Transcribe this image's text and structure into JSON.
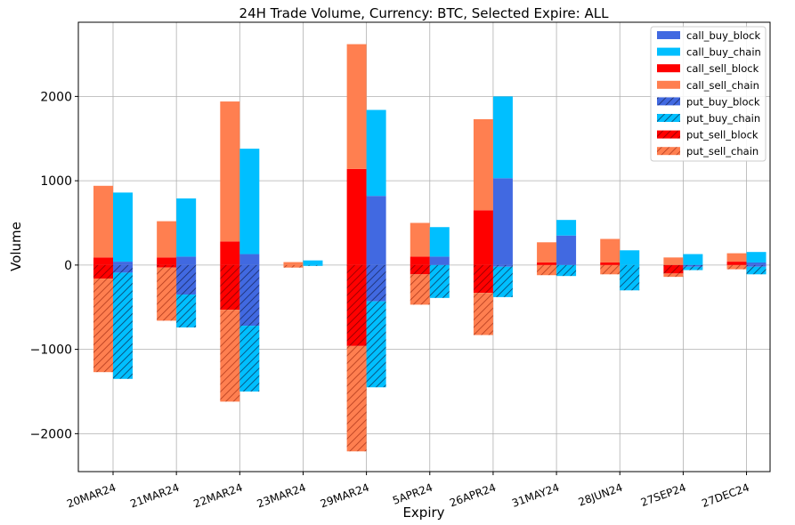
{
  "chart_data": {
    "type": "bar",
    "title": "24H Trade Volume, Currency: BTC, Selected Expire: ALL",
    "xlabel": "Expiry",
    "ylabel": "Volume",
    "ylim": [
      -2450,
      2880
    ],
    "yticks": [
      -2000,
      -1000,
      0,
      1000,
      2000
    ],
    "ytick_labels": [
      "−2000",
      "−1000",
      "0",
      "1000",
      "2000"
    ],
    "grid": true,
    "legend_position": "top-right",
    "categories": [
      "20MAR24",
      "21MAR24",
      "22MAR24",
      "23MAR24",
      "29MAR24",
      "5APR24",
      "26APR24",
      "31MAY24",
      "28JUN24",
      "27SEP24",
      "27DEC24"
    ],
    "colors": {
      "call_buy_block": "#4169e1",
      "call_buy_chain": "#00bfff",
      "call_sell_block": "#ff0000",
      "call_sell_chain": "#ff7f50",
      "put_buy_block": "#4169e1",
      "put_buy_chain": "#00bfff",
      "put_sell_block": "#ff0000",
      "put_sell_chain": "#ff7f50"
    },
    "series": [
      {
        "name": "call_buy_block",
        "values": [
          40,
          100,
          130,
          0,
          820,
          100,
          1030,
          350,
          0,
          0,
          30
        ]
      },
      {
        "name": "call_buy_chain",
        "values": [
          820,
          690,
          1250,
          55,
          1020,
          350,
          970,
          185,
          175,
          130,
          125
        ]
      },
      {
        "name": "call_sell_block",
        "values": [
          90,
          90,
          280,
          0,
          1140,
          100,
          650,
          30,
          30,
          0,
          40
        ]
      },
      {
        "name": "call_sell_chain",
        "values": [
          850,
          430,
          1660,
          35,
          1480,
          400,
          1080,
          240,
          280,
          90,
          100
        ]
      },
      {
        "name": "put_buy_block",
        "values": [
          -90,
          -350,
          -720,
          0,
          -430,
          0,
          -20,
          0,
          0,
          -20,
          -20
        ]
      },
      {
        "name": "put_buy_chain",
        "values": [
          -1260,
          -390,
          -780,
          -10,
          -1020,
          -390,
          -360,
          -130,
          -300,
          -40,
          -90
        ]
      },
      {
        "name": "put_sell_block",
        "values": [
          -160,
          -30,
          -530,
          0,
          -960,
          -110,
          -330,
          0,
          0,
          -100,
          0
        ]
      },
      {
        "name": "put_sell_chain",
        "values": [
          -1110,
          -630,
          -1090,
          -30,
          -1250,
          -360,
          -500,
          -120,
          -110,
          -40,
          -50
        ]
      }
    ]
  }
}
